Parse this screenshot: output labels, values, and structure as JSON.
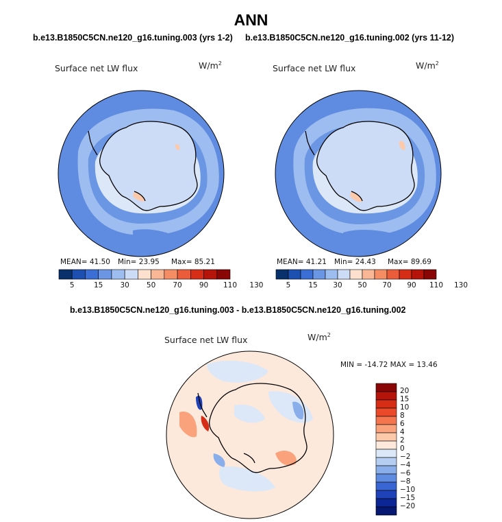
{
  "season": "ANN",
  "case_left_title": "b.e13.B1850C5CN.ne120_g16.tuning.003 (yrs 1-2)",
  "case_right_title": "b.e13.B1850C5CN.ne120_g16.tuning.002 (yrs 11-12)",
  "diff_title": "b.e13.B1850C5CN.ne120_g16.tuning.003 - b.e13.B1850C5CN.ne120_g16.tuning.002",
  "variable_label": "Surface net LW flux",
  "units": "W/m",
  "units_exponent": "2",
  "left_panel": {
    "mean": "MEAN=  41.50",
    "min": "Min=  23.95",
    "max": "Max=  85.21"
  },
  "right_panel": {
    "mean": "MEAN=  41.21",
    "min": "Min=  24.43",
    "max": "Max=  89.69"
  },
  "diff_panel": {
    "minmax": "MIN = -14.72 MAX =  13.46"
  },
  "abs_colorbar": {
    "labels": [
      "5",
      "15",
      "30",
      "50",
      "70",
      "90",
      "110",
      "130"
    ],
    "colors": [
      "#08306b",
      "#1c4fb0",
      "#3b6fd6",
      "#6a96e4",
      "#9dbcef",
      "#cddcf6",
      "#fde0cd",
      "#f9b796",
      "#f48c64",
      "#ea5c3a",
      "#d62e16",
      "#b5140b",
      "#8a0606"
    ]
  },
  "diff_colorbar": {
    "labels": [
      "20",
      "15",
      "10",
      "8",
      "6",
      "4",
      "2",
      "0",
      "−2",
      "−4",
      "−6",
      "−8",
      "−10",
      "−15",
      "−20"
    ],
    "colors": [
      "#8a0606",
      "#b5140b",
      "#d62e16",
      "#ea4a2a",
      "#f4764e",
      "#f9a27c",
      "#fcc9ab",
      "#fde9dc",
      "#dce8f8",
      "#b6cdf2",
      "#8aaee9",
      "#5f8ce0",
      "#3a66d4",
      "#1f42b8",
      "#0d2696",
      "#071873"
    ]
  },
  "map_colors": {
    "ocean_mid": "#6a96e4",
    "ocean_outer": "#5f8ce0",
    "ocean_band": "#9dbcef",
    "ice": "#cddcf6",
    "ice_light": "#dce8f8",
    "warm": "#fcc9ab",
    "diff_bg": "#fde9dc",
    "diff_light_blue": "#dce8f8",
    "diff_blue": "#8aaee9",
    "diff_red": "#f9a27c"
  }
}
